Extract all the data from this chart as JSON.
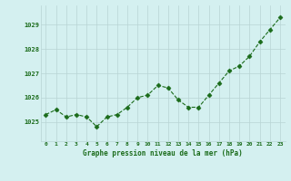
{
  "x": [
    0,
    1,
    2,
    3,
    4,
    5,
    6,
    7,
    8,
    9,
    10,
    11,
    12,
    13,
    14,
    15,
    16,
    17,
    18,
    19,
    20,
    21,
    22,
    23
  ],
  "y": [
    1025.3,
    1025.5,
    1025.2,
    1025.3,
    1025.2,
    1024.8,
    1025.2,
    1025.3,
    1025.6,
    1026.0,
    1026.1,
    1026.5,
    1026.4,
    1025.9,
    1025.6,
    1025.6,
    1026.1,
    1026.6,
    1027.1,
    1027.3,
    1027.7,
    1028.3,
    1028.8,
    1029.3
  ],
  "line_color": "#1a6b1a",
  "marker": "D",
  "marker_size": 2.5,
  "bg_color": "#d4f0f0",
  "grid_color": "#b8d4d4",
  "xlabel": "Graphe pression niveau de la mer (hPa)",
  "xlabel_color": "#1a6b1a",
  "tick_color": "#1a6b1a",
  "ylim": [
    1024.2,
    1029.8
  ],
  "xlim": [
    -0.5,
    23.5
  ],
  "yticks": [
    1025,
    1026,
    1027,
    1028,
    1029
  ],
  "xticks": [
    0,
    1,
    2,
    3,
    4,
    5,
    6,
    7,
    8,
    9,
    10,
    11,
    12,
    13,
    14,
    15,
    16,
    17,
    18,
    19,
    20,
    21,
    22,
    23
  ],
  "figsize": [
    3.2,
    2.0
  ],
  "dpi": 100
}
